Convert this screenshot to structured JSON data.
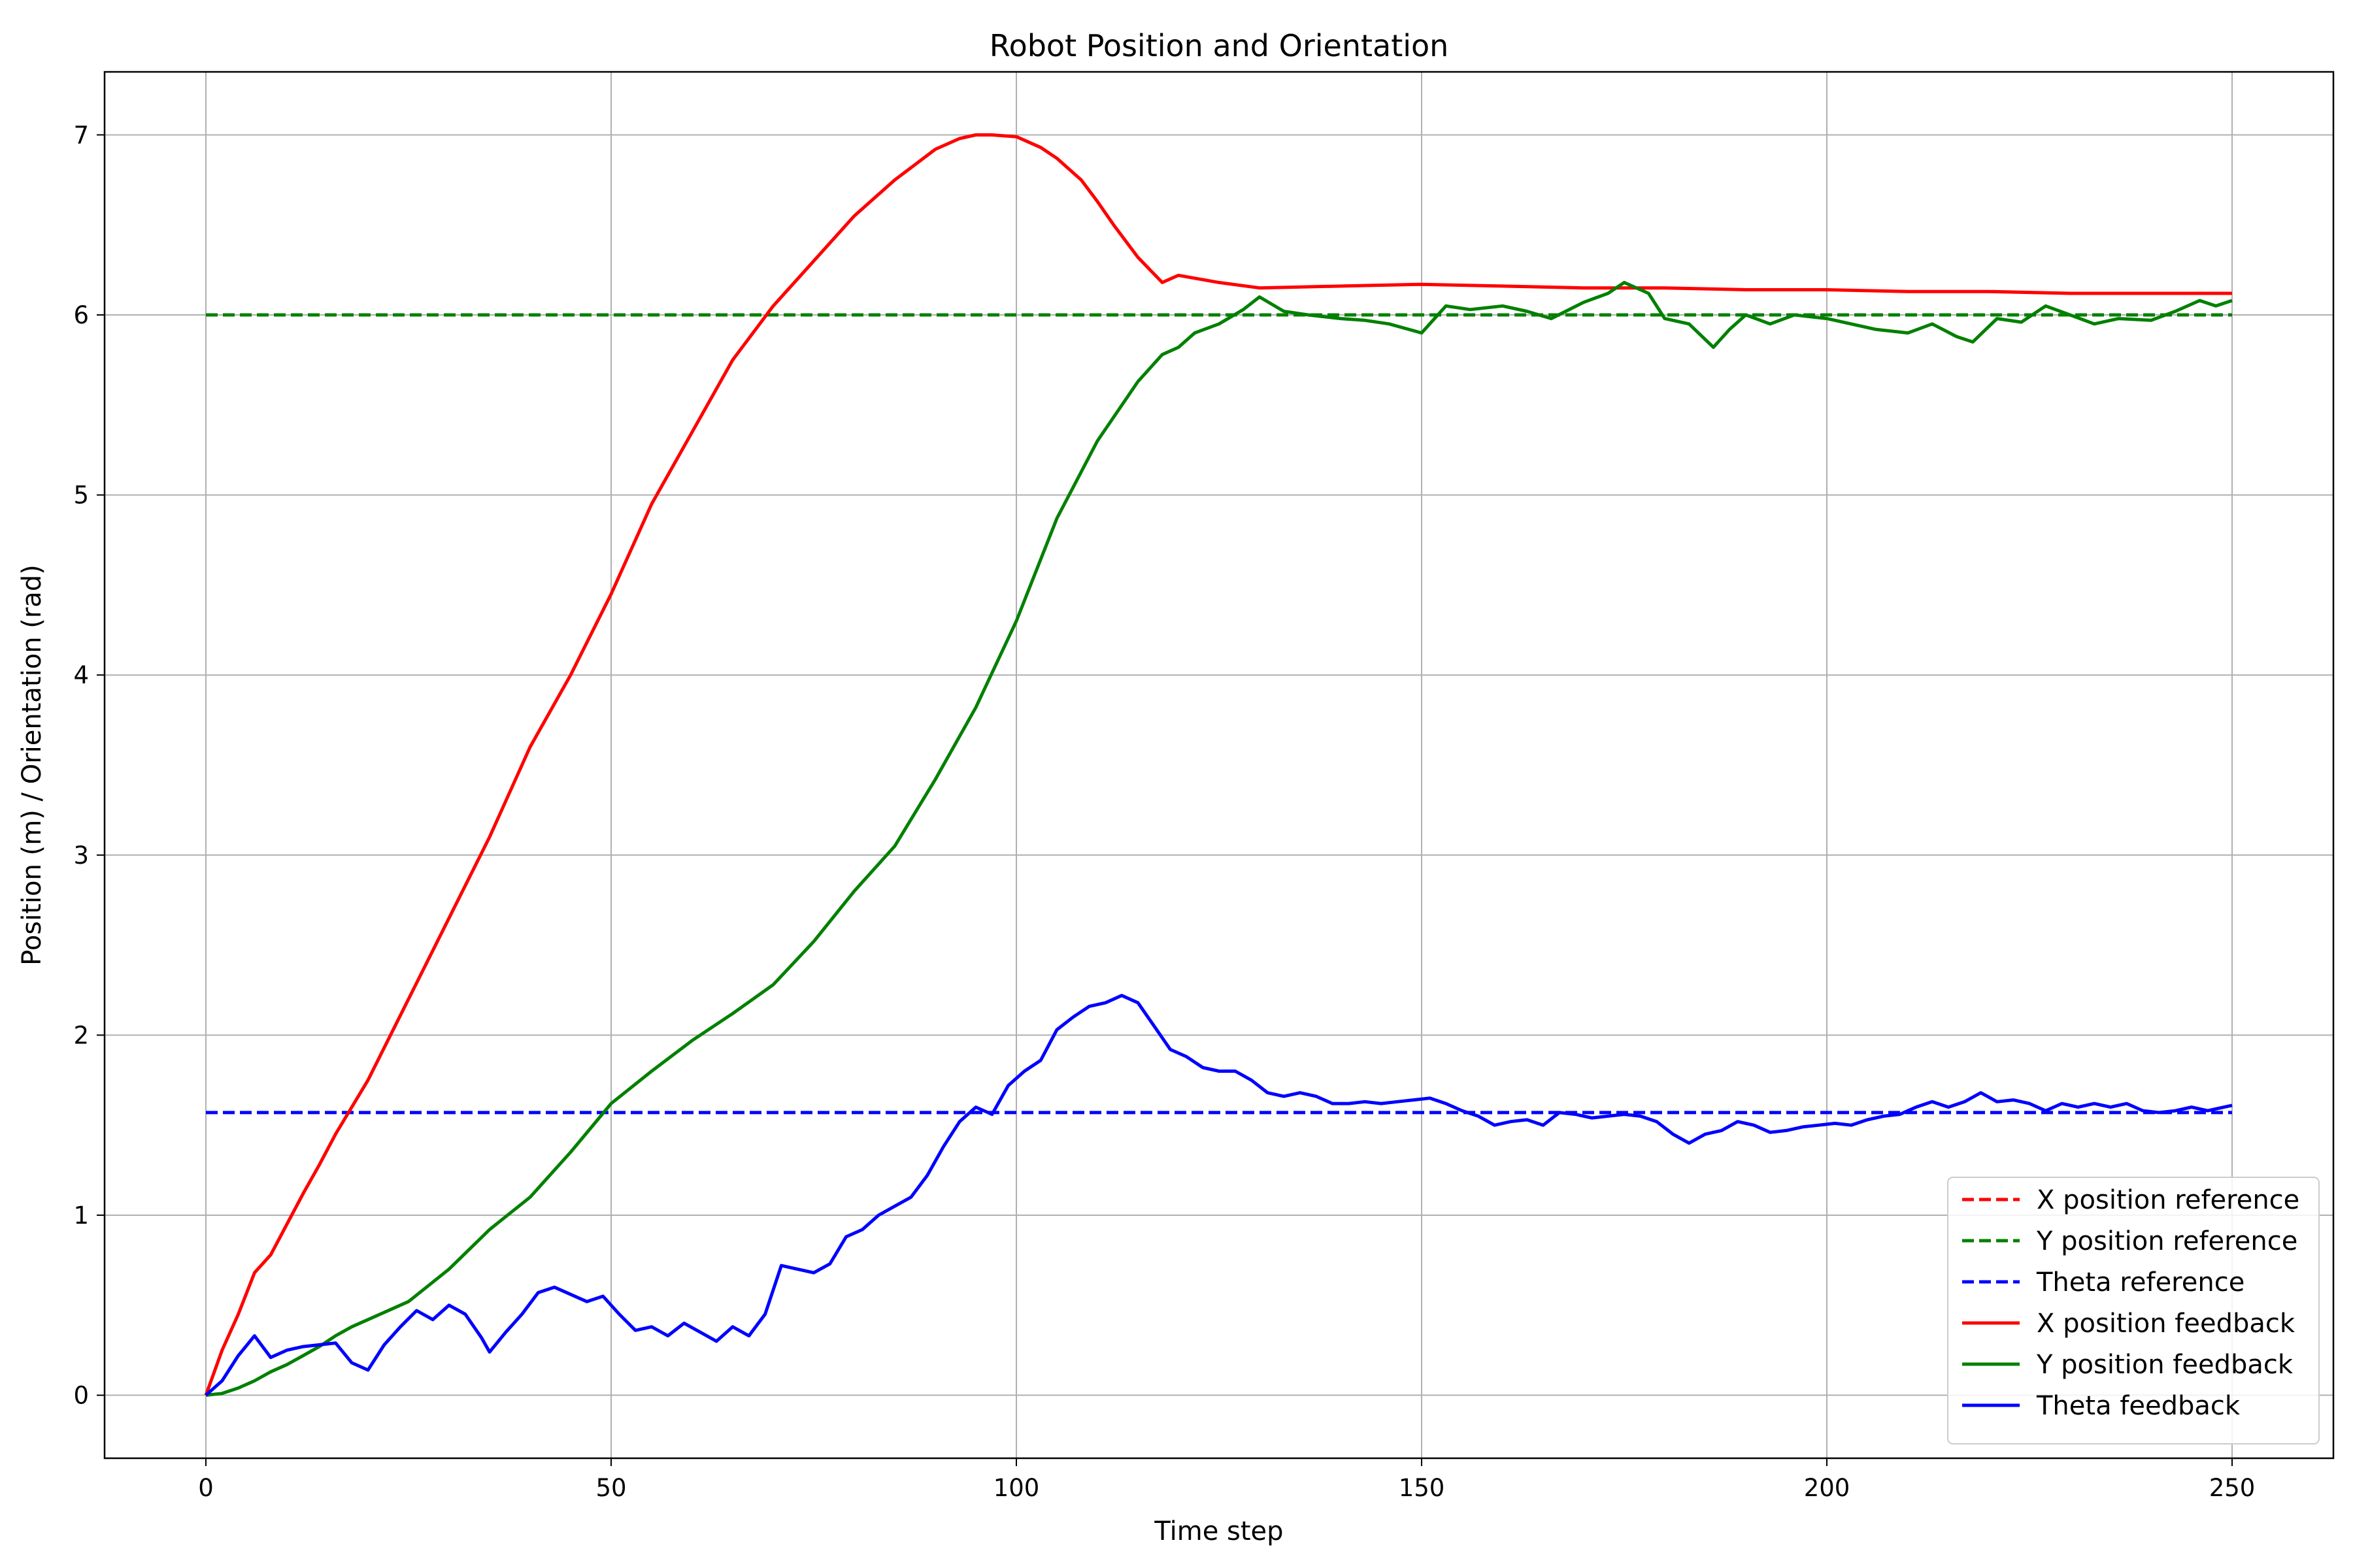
{
  "chart_data": {
    "type": "line",
    "title": "Robot Position and Orientation",
    "xlabel": "Time step",
    "ylabel": "Position (m) / Orientation (rad)",
    "xlim": [
      -12.5,
      262.5
    ],
    "ylim": [
      -0.35,
      7.35
    ],
    "xticks": [
      0,
      50,
      100,
      150,
      200,
      250
    ],
    "yticks": [
      0,
      1,
      2,
      3,
      4,
      5,
      6,
      7
    ],
    "grid": true,
    "legend_position": "lower-right",
    "series": [
      {
        "name": "X position reference",
        "color": "#ff0000",
        "style": "dashed",
        "x": [
          0,
          250
        ],
        "y": [
          6.0,
          6.0
        ]
      },
      {
        "name": "Y position reference",
        "color": "#008000",
        "style": "dashed",
        "x": [
          0,
          250
        ],
        "y": [
          6.0,
          6.0
        ]
      },
      {
        "name": "Theta reference",
        "color": "#0000ff",
        "style": "dashed",
        "x": [
          0,
          250
        ],
        "y": [
          1.57,
          1.57
        ]
      },
      {
        "name": "X position feedback",
        "color": "#ff0000",
        "style": "solid",
        "x": [
          0,
          2,
          4,
          6,
          8,
          10,
          12,
          14,
          16,
          18,
          20,
          25,
          30,
          35,
          40,
          45,
          50,
          55,
          60,
          65,
          70,
          75,
          80,
          85,
          90,
          93,
          95,
          97,
          100,
          103,
          105,
          108,
          110,
          112,
          115,
          118,
          120,
          125,
          130,
          140,
          150,
          160,
          170,
          180,
          190,
          200,
          210,
          220,
          230,
          240,
          250
        ],
        "y": [
          0.0,
          0.25,
          0.45,
          0.68,
          0.78,
          0.95,
          1.12,
          1.28,
          1.45,
          1.6,
          1.75,
          2.2,
          2.65,
          3.1,
          3.6,
          4.0,
          4.45,
          4.95,
          5.35,
          5.75,
          6.05,
          6.3,
          6.55,
          6.75,
          6.92,
          6.98,
          7.0,
          7.0,
          6.99,
          6.93,
          6.87,
          6.75,
          6.63,
          6.5,
          6.32,
          6.18,
          6.22,
          6.18,
          6.15,
          6.16,
          6.17,
          6.16,
          6.15,
          6.15,
          6.14,
          6.14,
          6.13,
          6.13,
          6.12,
          6.12,
          6.12
        ]
      },
      {
        "name": "Y position feedback",
        "color": "#008000",
        "style": "solid",
        "x": [
          0,
          2,
          4,
          6,
          8,
          10,
          12,
          14,
          16,
          18,
          20,
          25,
          30,
          35,
          40,
          45,
          50,
          55,
          60,
          65,
          70,
          75,
          80,
          85,
          90,
          95,
          100,
          105,
          110,
          115,
          118,
          120,
          122,
          125,
          128,
          130,
          133,
          136,
          140,
          143,
          146,
          150,
          153,
          156,
          160,
          163,
          166,
          170,
          173,
          175,
          178,
          180,
          183,
          186,
          188,
          190,
          193,
          196,
          200,
          203,
          206,
          210,
          213,
          216,
          218,
          221,
          224,
          227,
          230,
          233,
          236,
          240,
          243,
          246,
          248,
          250
        ],
        "y": [
          0.0,
          0.01,
          0.04,
          0.08,
          0.13,
          0.17,
          0.22,
          0.27,
          0.33,
          0.38,
          0.42,
          0.52,
          0.7,
          0.92,
          1.1,
          1.35,
          1.62,
          1.8,
          1.97,
          2.12,
          2.28,
          2.52,
          2.8,
          3.05,
          3.42,
          3.82,
          4.3,
          4.87,
          5.3,
          5.63,
          5.78,
          5.82,
          5.9,
          5.95,
          6.03,
          6.1,
          6.02,
          6.0,
          5.98,
          5.97,
          5.95,
          5.9,
          6.05,
          6.03,
          6.05,
          6.02,
          5.98,
          6.07,
          6.12,
          6.18,
          6.12,
          5.98,
          5.95,
          5.82,
          5.92,
          6.0,
          5.95,
          6.0,
          5.98,
          5.95,
          5.92,
          5.9,
          5.95,
          5.88,
          5.85,
          5.98,
          5.96,
          6.05,
          6.0,
          5.95,
          5.98,
          5.97,
          6.02,
          6.08,
          6.05,
          6.08
        ]
      },
      {
        "name": "Theta feedback",
        "color": "#0000ff",
        "style": "solid",
        "x": [
          0,
          2,
          4,
          6,
          8,
          10,
          12,
          14,
          16,
          18,
          20,
          22,
          24,
          26,
          28,
          30,
          32,
          34,
          35,
          37,
          39,
          41,
          43,
          45,
          47,
          49,
          51,
          53,
          55,
          57,
          59,
          61,
          63,
          65,
          67,
          69,
          71,
          73,
          75,
          77,
          79,
          81,
          83,
          85,
          87,
          89,
          91,
          93,
          95,
          97,
          99,
          101,
          103,
          105,
          107,
          109,
          111,
          113,
          115,
          117,
          119,
          121,
          123,
          125,
          127,
          129,
          131,
          133,
          135,
          137,
          139,
          141,
          143,
          145,
          147,
          149,
          151,
          153,
          155,
          157,
          159,
          161,
          163,
          165,
          167,
          169,
          171,
          173,
          175,
          177,
          179,
          181,
          183,
          185,
          187,
          189,
          191,
          193,
          195,
          197,
          199,
          201,
          203,
          205,
          207,
          209,
          211,
          213,
          215,
          217,
          219,
          221,
          223,
          225,
          227,
          229,
          231,
          233,
          235,
          237,
          239,
          241,
          243,
          245,
          247,
          249,
          250
        ],
        "y": [
          0.0,
          0.08,
          0.22,
          0.33,
          0.21,
          0.25,
          0.27,
          0.28,
          0.29,
          0.18,
          0.14,
          0.28,
          0.38,
          0.47,
          0.42,
          0.5,
          0.45,
          0.32,
          0.24,
          0.35,
          0.45,
          0.57,
          0.6,
          0.56,
          0.52,
          0.55,
          0.45,
          0.36,
          0.38,
          0.33,
          0.4,
          0.35,
          0.3,
          0.38,
          0.33,
          0.45,
          0.72,
          0.7,
          0.68,
          0.73,
          0.88,
          0.92,
          1.0,
          1.05,
          1.1,
          1.22,
          1.38,
          1.52,
          1.6,
          1.56,
          1.72,
          1.8,
          1.86,
          2.03,
          2.1,
          2.16,
          2.18,
          2.22,
          2.18,
          2.05,
          1.92,
          1.88,
          1.82,
          1.8,
          1.8,
          1.75,
          1.68,
          1.66,
          1.68,
          1.66,
          1.62,
          1.62,
          1.63,
          1.62,
          1.63,
          1.64,
          1.65,
          1.62,
          1.58,
          1.55,
          1.5,
          1.52,
          1.53,
          1.5,
          1.57,
          1.56,
          1.54,
          1.55,
          1.56,
          1.55,
          1.52,
          1.45,
          1.4,
          1.45,
          1.47,
          1.52,
          1.5,
          1.46,
          1.47,
          1.49,
          1.5,
          1.51,
          1.5,
          1.53,
          1.55,
          1.56,
          1.6,
          1.63,
          1.6,
          1.63,
          1.68,
          1.63,
          1.64,
          1.62,
          1.58,
          1.62,
          1.6,
          1.62,
          1.6,
          1.62,
          1.58,
          1.57,
          1.58,
          1.6,
          1.58,
          1.6,
          1.61
        ]
      }
    ]
  }
}
